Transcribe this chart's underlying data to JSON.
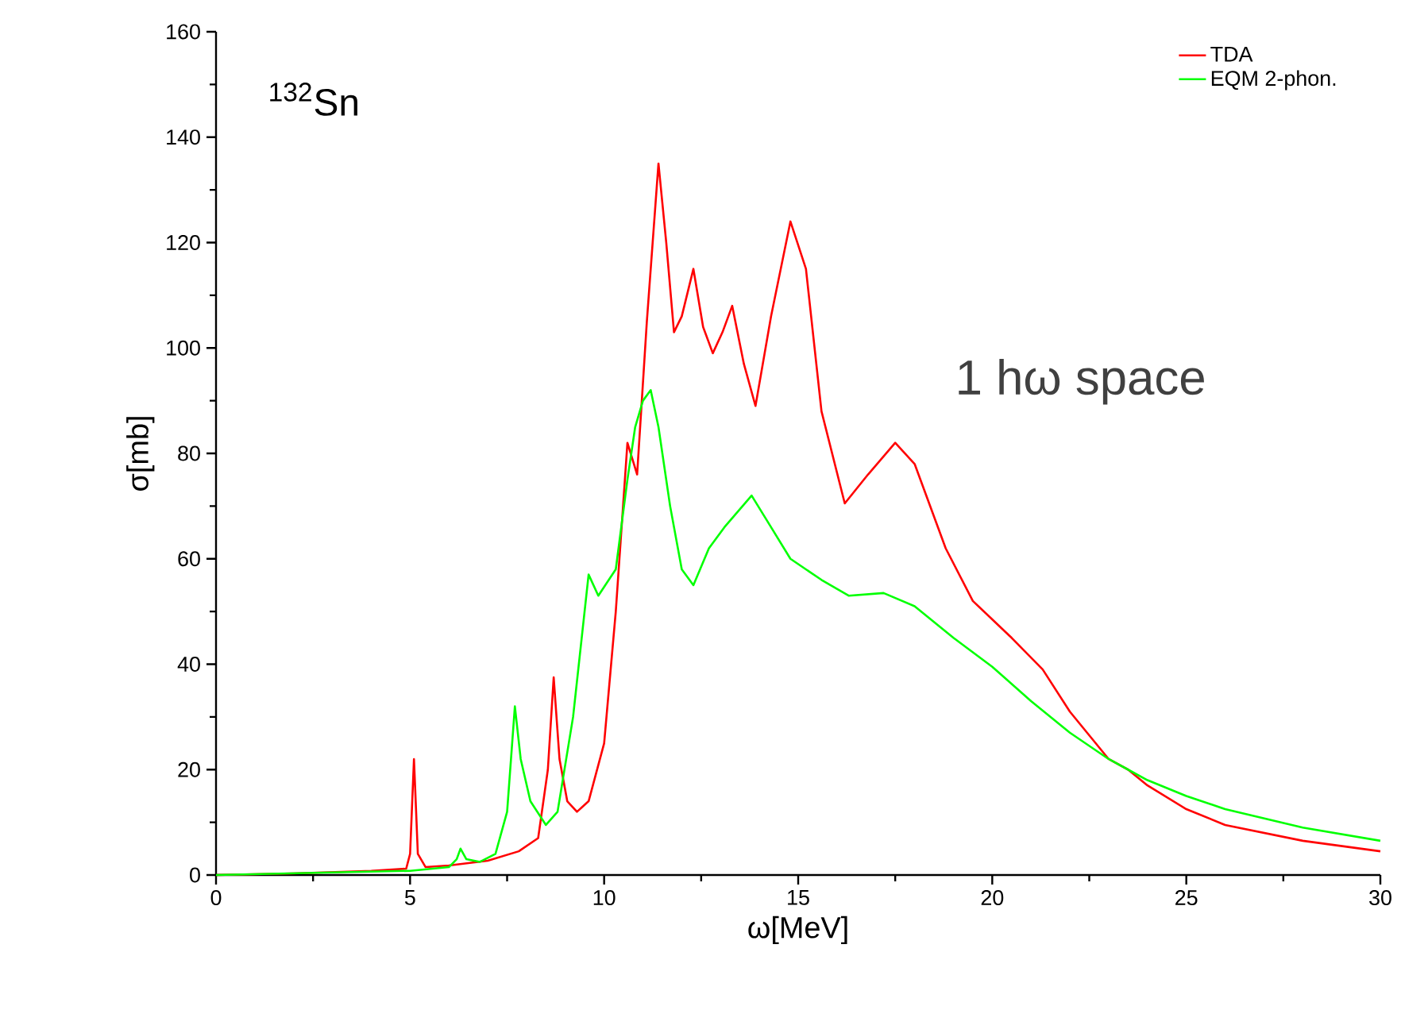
{
  "chart_data": {
    "type": "line",
    "xlabel": "ω[MeV]",
    "ylabel": "σ[mb]",
    "xlim": [
      0,
      30
    ],
    "ylim": [
      0,
      160
    ],
    "xticks": [
      0,
      5,
      10,
      15,
      20,
      25,
      30
    ],
    "yticks": [
      0,
      20,
      40,
      60,
      80,
      100,
      120,
      140,
      160
    ],
    "legend": "top right",
    "grid": false,
    "marker": "none",
    "line_style": "solid",
    "annotations": [
      "$^{132}$Sn",
      "1 hω space"
    ],
    "series": [
      {
        "name": "TDA",
        "color": "#ff0000",
        "x": [
          0,
          2,
          4,
          4.9,
          5.0,
          5.1,
          5.2,
          5.4,
          6,
          7,
          7.8,
          8.3,
          8.55,
          8.7,
          8.85,
          9.05,
          9.3,
          9.6,
          10,
          10.3,
          10.6,
          10.85,
          11.1,
          11.4,
          11.6,
          11.8,
          12.0,
          12.3,
          12.55,
          12.8,
          13.05,
          13.3,
          13.6,
          13.9,
          14.3,
          14.8,
          15.2,
          15.6,
          16.2,
          16.8,
          17.5,
          18,
          18.8,
          19.5,
          20.5,
          21.3,
          22,
          23,
          23.5,
          24,
          25,
          26,
          28,
          30
        ],
        "values": [
          0,
          0.3,
          0.8,
          1.2,
          4,
          22,
          4,
          1.5,
          1.8,
          2.7,
          4.5,
          7,
          20,
          37.5,
          22,
          14,
          12,
          14,
          25,
          50,
          82,
          76,
          105,
          135,
          120,
          103,
          106,
          115,
          104,
          99,
          103,
          108,
          97,
          89,
          106,
          124,
          115,
          88,
          70.5,
          76,
          82,
          78,
          62,
          52,
          45,
          39,
          31,
          22,
          20,
          17,
          12.5,
          9.5,
          6.5,
          4.5
        ]
      },
      {
        "name": "EQM 2-phon.",
        "color": "#00ff00",
        "x": [
          0,
          3,
          5,
          6,
          6.2,
          6.3,
          6.45,
          6.8,
          7.2,
          7.5,
          7.7,
          7.85,
          8.1,
          8.5,
          8.8,
          9.2,
          9.6,
          9.85,
          10.3,
          10.6,
          10.8,
          11.0,
          11.2,
          11.4,
          11.7,
          12.0,
          12.3,
          12.7,
          13.1,
          13.8,
          14.3,
          14.8,
          15.6,
          16.3,
          17.2,
          18,
          19,
          20,
          21,
          22,
          23,
          23.5,
          24,
          25,
          26,
          28,
          30
        ],
        "values": [
          0,
          0.5,
          0.8,
          1.5,
          3,
          5,
          3,
          2.5,
          4,
          12,
          32,
          22,
          14,
          9.5,
          12,
          30,
          57,
          53,
          58,
          75,
          85,
          90,
          92,
          85,
          70,
          58,
          55,
          62,
          66,
          72,
          66,
          60,
          56,
          53,
          53.5,
          51,
          45,
          39.5,
          33,
          27,
          22,
          20,
          18,
          15,
          12.5,
          9,
          6.5
        ]
      }
    ]
  }
}
